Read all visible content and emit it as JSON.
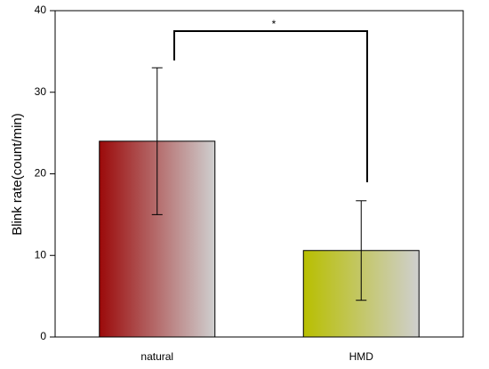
{
  "chart_data": {
    "type": "bar",
    "categories": [
      "natural",
      "HMD"
    ],
    "values": [
      24,
      10.6
    ],
    "errors": [
      9,
      6.1
    ],
    "colors": [
      "#9b0a0a",
      "#b8bf00"
    ],
    "gradient_end": "#cfcfcf",
    "ylabel": "Blink rate(count/min)",
    "ylim": [
      0,
      40
    ],
    "yticks": [
      0,
      10,
      20,
      30,
      40
    ],
    "annotation": "*",
    "grid": false
  }
}
